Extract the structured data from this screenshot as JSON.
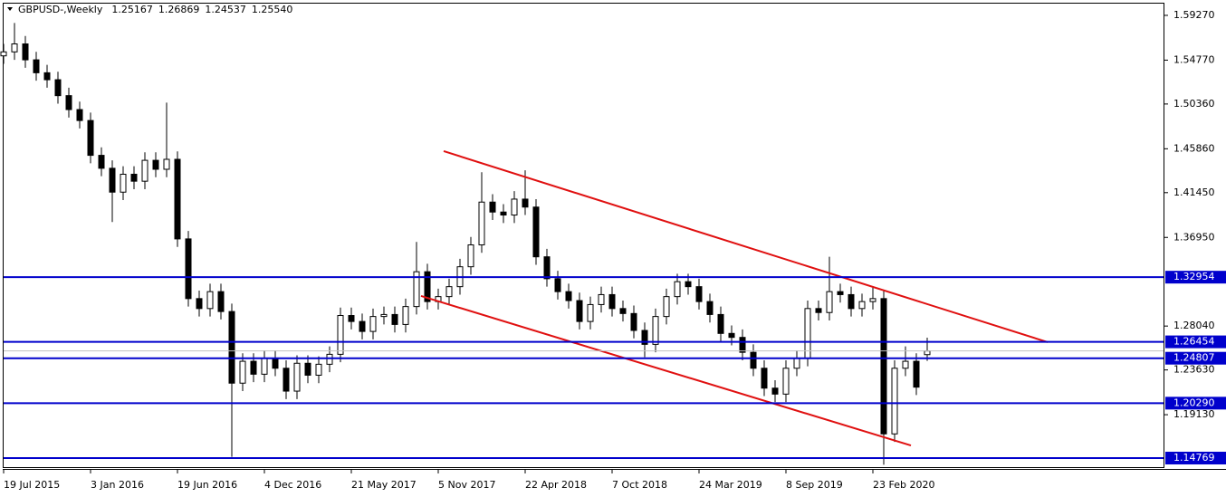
{
  "chart_data": {
    "type": "candlestick",
    "title": "GBPUSD-,Weekly",
    "ohlc_labels": [
      "1.25167",
      "1.26869",
      "1.24537",
      "1.25540"
    ],
    "x": [
      0,
      3,
      6,
      9,
      12,
      15,
      18,
      21,
      24,
      27,
      30,
      33,
      36,
      39,
      42,
      45,
      48,
      51,
      54,
      57,
      60,
      63,
      66,
      69,
      72,
      75,
      78,
      81,
      84,
      87,
      90,
      93,
      96,
      99,
      102,
      105,
      108,
      111,
      114,
      117,
      120,
      123,
      126,
      129,
      132,
      135,
      138,
      141,
      144,
      147,
      150,
      153,
      156,
      159,
      162,
      165,
      168,
      171,
      174,
      177,
      180,
      183,
      186,
      189,
      192,
      195,
      198,
      201,
      204,
      207,
      210,
      213,
      216,
      219,
      222,
      225,
      228,
      231,
      234,
      237,
      240,
      243,
      246,
      249,
      252,
      255
    ],
    "open": [
      1.552,
      1.556,
      1.564,
      1.548,
      1.535,
      1.528,
      1.512,
      1.498,
      1.487,
      1.452,
      1.439,
      1.415,
      1.433,
      1.426,
      1.447,
      1.438,
      1.448,
      1.368,
      1.308,
      1.298,
      1.315,
      1.295,
      1.223,
      1.245,
      1.232,
      1.248,
      1.238,
      1.215,
      1.243,
      1.231,
      1.242,
      1.252,
      1.291,
      1.285,
      1.275,
      1.29,
      1.292,
      1.282,
      1.3,
      1.335,
      1.305,
      1.31,
      1.32,
      1.34,
      1.362,
      1.405,
      1.395,
      1.392,
      1.408,
      1.4,
      1.35,
      1.328,
      1.315,
      1.306,
      1.285,
      1.302,
      1.312,
      1.298,
      1.293,
      1.276,
      1.262,
      1.29,
      1.31,
      1.325,
      1.32,
      1.305,
      1.292,
      1.273,
      1.269,
      1.254,
      1.238,
      1.218,
      1.212,
      1.238,
      1.248,
      1.298,
      1.294,
      1.315,
      1.312,
      1.298,
      1.305,
      1.308,
      1.172,
      1.238,
      1.245,
      1.25167
    ],
    "high": [
      1.564,
      1.585,
      1.572,
      1.556,
      1.543,
      1.536,
      1.52,
      1.506,
      1.495,
      1.46,
      1.447,
      1.441,
      1.441,
      1.455,
      1.455,
      1.505,
      1.456,
      1.376,
      1.316,
      1.323,
      1.323,
      1.303,
      1.253,
      1.253,
      1.256,
      1.256,
      1.246,
      1.251,
      1.251,
      1.25,
      1.26,
      1.299,
      1.299,
      1.293,
      1.298,
      1.3,
      1.3,
      1.308,
      1.365,
      1.343,
      1.318,
      1.328,
      1.348,
      1.37,
      1.435,
      1.413,
      1.403,
      1.416,
      1.437,
      1.408,
      1.358,
      1.336,
      1.323,
      1.314,
      1.31,
      1.32,
      1.32,
      1.306,
      1.301,
      1.284,
      1.298,
      1.318,
      1.333,
      1.333,
      1.328,
      1.313,
      1.3,
      1.281,
      1.277,
      1.262,
      1.246,
      1.226,
      1.246,
      1.256,
      1.306,
      1.306,
      1.35,
      1.323,
      1.32,
      1.313,
      1.32,
      1.316,
      1.246,
      1.26,
      1.253,
      1.26869
    ],
    "low": [
      1.544,
      1.548,
      1.54,
      1.527,
      1.52,
      1.504,
      1.49,
      1.479,
      1.444,
      1.431,
      1.385,
      1.407,
      1.418,
      1.418,
      1.43,
      1.43,
      1.36,
      1.3,
      1.29,
      1.29,
      1.287,
      1.149,
      1.215,
      1.224,
      1.224,
      1.23,
      1.207,
      1.207,
      1.223,
      1.223,
      1.234,
      1.244,
      1.277,
      1.267,
      1.267,
      1.282,
      1.274,
      1.274,
      1.292,
      1.297,
      1.297,
      1.302,
      1.312,
      1.332,
      1.354,
      1.387,
      1.384,
      1.384,
      1.392,
      1.342,
      1.32,
      1.307,
      1.298,
      1.277,
      1.277,
      1.294,
      1.29,
      1.285,
      1.268,
      1.249,
      1.254,
      1.282,
      1.302,
      1.312,
      1.297,
      1.284,
      1.265,
      1.261,
      1.246,
      1.23,
      1.21,
      1.204,
      1.204,
      1.23,
      1.24,
      1.286,
      1.286,
      1.304,
      1.29,
      1.29,
      1.297,
      1.141,
      1.164,
      1.23,
      1.211,
      1.24537
    ],
    "close": [
      1.556,
      1.564,
      1.548,
      1.535,
      1.528,
      1.512,
      1.498,
      1.487,
      1.452,
      1.439,
      1.415,
      1.433,
      1.426,
      1.447,
      1.438,
      1.448,
      1.368,
      1.308,
      1.298,
      1.315,
      1.295,
      1.223,
      1.245,
      1.232,
      1.248,
      1.238,
      1.215,
      1.243,
      1.231,
      1.242,
      1.252,
      1.291,
      1.285,
      1.275,
      1.29,
      1.292,
      1.282,
      1.3,
      1.335,
      1.305,
      1.31,
      1.32,
      1.34,
      1.362,
      1.405,
      1.395,
      1.392,
      1.408,
      1.4,
      1.35,
      1.328,
      1.315,
      1.306,
      1.285,
      1.302,
      1.312,
      1.298,
      1.293,
      1.276,
      1.262,
      1.29,
      1.31,
      1.325,
      1.32,
      1.305,
      1.292,
      1.273,
      1.269,
      1.254,
      1.238,
      1.218,
      1.212,
      1.238,
      1.248,
      1.298,
      1.294,
      1.315,
      1.312,
      1.298,
      1.305,
      1.308,
      1.172,
      1.238,
      1.245,
      1.219,
      1.2554
    ],
    "color": "#000000",
    "xlim": [
      0,
      320
    ],
    "xticks": [
      {
        "value": 0,
        "label": "19 Jul 2015"
      },
      {
        "value": 24,
        "label": "3 Jan 2016"
      },
      {
        "value": 48,
        "label": "19 Jun 2016"
      },
      {
        "value": 72,
        "label": "4 Dec 2016"
      },
      {
        "value": 96,
        "label": "21 May 2017"
      },
      {
        "value": 120,
        "label": "5 Nov 2017"
      },
      {
        "value": 144,
        "label": "22 Apr 2018"
      },
      {
        "value": 168,
        "label": "7 Oct 2018"
      },
      {
        "value": 192,
        "label": "24 Mar 2019"
      },
      {
        "value": 216,
        "label": "8 Sep 2019"
      },
      {
        "value": 240,
        "label": "23 Feb 2020"
      }
    ],
    "ylim": [
      1.1386,
      1.6045
    ],
    "yticks": [
      {
        "value": 1.5927,
        "label": "1.59270"
      },
      {
        "value": 1.5477,
        "label": "1.54770"
      },
      {
        "value": 1.5036,
        "label": "1.50360"
      },
      {
        "value": 1.4586,
        "label": "1.45860"
      },
      {
        "value": 1.4145,
        "label": "1.41450"
      },
      {
        "value": 1.3695,
        "label": "1.36950"
      },
      {
        "value": 1.2804,
        "label": "1.28040"
      },
      {
        "value": 1.2363,
        "label": "1.23630"
      },
      {
        "value": 1.1913,
        "label": "1.19130"
      }
    ],
    "levels": [
      1.32954,
      1.26454,
      1.24807,
      {
        "value": 1.2029,
        "label": "1.20290"
      },
      1.14769
    ],
    "level_color": "#0000cc",
    "trendlines": [
      {
        "x": [
          121.5,
          288.25
        ],
        "y": [
          1.4562,
          1.2642
        ]
      },
      {
        "x": [
          115.25,
          250.5
        ],
        "y": [
          1.3106,
          1.1604
        ]
      }
    ],
    "trendline_color": "#e01010"
  }
}
